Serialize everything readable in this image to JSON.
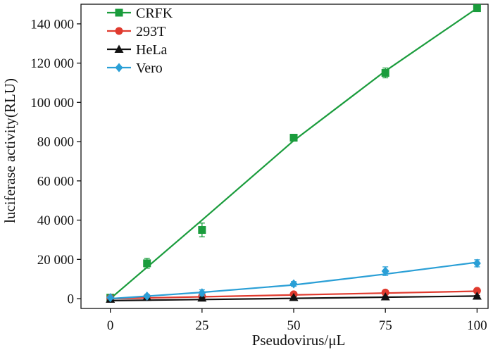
{
  "chart_data": {
    "type": "line",
    "xlabel": "Pseudovirus/μL",
    "ylabel": "luciferase activity(RLU)",
    "xlim": [
      -8,
      103
    ],
    "ylim": [
      -5000,
      150000
    ],
    "x_ticks": [
      0,
      25,
      50,
      75,
      100
    ],
    "x_tick_labels": [
      "0",
      "25",
      "50",
      "75",
      "100"
    ],
    "y_ticks": [
      0,
      20000,
      40000,
      60000,
      80000,
      100000,
      120000,
      140000
    ],
    "y_tick_labels": [
      "0",
      "20 000",
      "40 000",
      "60 000",
      "80 000",
      "100 000",
      "120 000",
      "140 000"
    ],
    "legend_position": "top-left",
    "series": [
      {
        "name": "CRFK",
        "color": "#1a9c3c",
        "marker": "square",
        "x": [
          0,
          10,
          25,
          50,
          75,
          100
        ],
        "values": [
          500,
          18000,
          35000,
          82000,
          115000,
          148000
        ],
        "errors": [
          800,
          2500,
          3500,
          1500,
          2500,
          1500
        ],
        "fit": [
          [
            0,
            0
          ],
          [
            25,
            40000
          ],
          [
            50,
            80500
          ],
          [
            75,
            116000
          ],
          [
            100,
            148000
          ]
        ]
      },
      {
        "name": "293T",
        "color": "#e03a2e",
        "marker": "circle",
        "x": [
          0,
          10,
          25,
          50,
          75,
          100
        ],
        "values": [
          300,
          800,
          1200,
          2200,
          3100,
          4000
        ],
        "errors": [
          300,
          300,
          300,
          300,
          400,
          400
        ],
        "fit": [
          [
            0,
            0
          ],
          [
            100,
            3800
          ]
        ]
      },
      {
        "name": "HeLa",
        "color": "#111111",
        "marker": "triangle",
        "x": [
          0,
          10,
          25,
          50,
          75,
          100
        ],
        "values": [
          -300,
          700,
          300,
          600,
          900,
          1300
        ],
        "errors": [
          300,
          300,
          300,
          300,
          300,
          300
        ],
        "fit": [
          [
            0,
            -1000
          ],
          [
            100,
            1300
          ]
        ]
      },
      {
        "name": "Vero",
        "color": "#2a9fd6",
        "marker": "diamond",
        "x": [
          0,
          10,
          25,
          50,
          75,
          100
        ],
        "values": [
          500,
          1300,
          3000,
          7500,
          14000,
          18000
        ],
        "errors": [
          400,
          500,
          1500,
          1200,
          2200,
          1800
        ],
        "fit": [
          [
            0,
            0
          ],
          [
            25,
            3200
          ],
          [
            50,
            7000
          ],
          [
            75,
            12500
          ],
          [
            100,
            18500
          ]
        ]
      }
    ]
  }
}
